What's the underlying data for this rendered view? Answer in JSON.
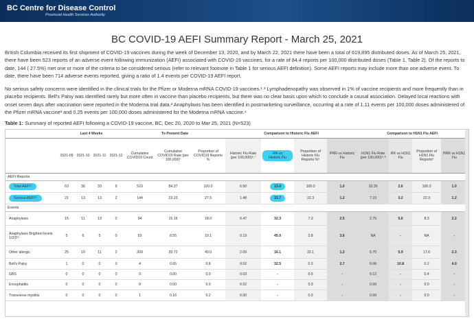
{
  "header": {
    "org": "BC Centre for Disease Control",
    "sub": "Provincial Health Services Authority"
  },
  "title": "BC COVID-19 AEFI Summary Report - March 25, 2021",
  "paragraphs": [
    "British Columbia received its first shipment of COVID-19 vaccines during the week of December 13, 2020, and by March 22, 2021 there have been a total of 619,895 distributed doses. As of March 25, 2021, there have been 523 reports of an adverse event following immunization (AEFI) associated with COVID-19 vaccines, for a rate of 84.4 reports per 100,000 distributed doses (Table 1, Table 2). Of the reports to date, 144 ( 27.5%) met one or more of the criteria to be considered serious (refer to relevant footnote in Table 1 for serious AEFI definition). Some AEFI reports may include more than one adverse event. To date, there have been 714 adverse events reported, giving a ratio of 1.4 events per COVID-19 AEFI report.",
    "No serious safety concerns were identified in the clinical trials for the Pfizer or Moderna mRNA COVID-19 vaccines.¹˒² Lymphadenopathy was observed in 1% of vaccine recipients and more frequently than in placebo recipients. Bell's Palsy was identified rarely but more often in vaccine than placebo recipients, but there was no clear basis upon which to conclude a causal association. Delayed local reactions with onset seven days after vaccination were reported in the Moderna trial data.² Anaphylaxis has been identified in postmarketing surveillance, occurring at a rate of 1.11 events per 100,000 doses administered of the Pfizer mRNA vaccine³ and 0.25 events per 100,000 doses administered for the Moderna mRNA vaccine.⁴"
  ],
  "table": {
    "caption_label": "Table 1:",
    "caption": "Summary of reported AEFI following a COVID-19 vaccine, BC, Dec 20, 2020 to Mar 25, 2021 (N=523)",
    "groups": [
      {
        "label": "Last 4 Weeks",
        "span": 4
      },
      {
        "label": "To Present Date",
        "span": 3
      },
      {
        "label": "Comparison to Historic Flu AEFI",
        "span": 4
      },
      {
        "label": "Comparison to H1N1 Flu AEFI",
        "span": 4
      }
    ],
    "columns": [
      "2021-09",
      "2021-10",
      "2021-11",
      "2021-12",
      "Cumulative COVID19 Count",
      "Cumulative COVID19 Rate (per 100,000)⁵",
      "Proportion of COVID19 Reports %",
      "Historic Flu Rate (per 100,000)⁶˒⁷",
      "RR vs Historic Flu",
      "Proportion of Historic Flu Reports %⁶",
      "PRR vs Historic Flu",
      "H1N1 Flu Rate (per 100,000)⁶˒⁸",
      "RR vs H1N1 Flu",
      "Proportion of H1N1 Flu Reports⁶",
      "PRR vs H1N1 Flu"
    ],
    "rows": [
      {
        "section": "AEFI Reports"
      },
      {
        "label": "Total AEFI⁹",
        "cells": [
          "63",
          "36",
          "33",
          "6",
          "523",
          "84.37",
          "100.0",
          "6.50",
          "13.0",
          "100.0",
          "1.0",
          "32.36",
          "2.6",
          "100.0",
          "1.0"
        ]
      },
      {
        "label": "Serious AEFI¹⁰",
        "cells": [
          "21",
          "13",
          "13",
          "2",
          "144",
          "23.23",
          "27.5",
          "1.48",
          "15.7",
          "22.3",
          "1.2",
          "7.23",
          "3.2",
          "22.3",
          "1.2"
        ]
      },
      {
        "section": "Events"
      },
      {
        "label": "Anaphylaxis",
        "cells": [
          "15",
          "11",
          "13",
          "0",
          "94",
          "15.16",
          "18.0",
          "0.47",
          "32.3",
          "7.3",
          "2.5",
          "2.70",
          "5.6",
          "8.3",
          "2.2"
        ]
      },
      {
        "label": "Anaphylaxis Brighton levels 1/2/3¹¹",
        "cells": [
          "5",
          "6",
          "5",
          "0",
          "53",
          "8.55",
          "10.1",
          "0.19",
          "45.0",
          "2.8",
          "3.6",
          "NA",
          "-",
          "NA",
          "-"
        ]
      },
      {
        "label": "Other allergic",
        "cells": [
          "25",
          "10",
          "11",
          "2",
          "209",
          "33.72",
          "40.0",
          "2.09",
          "16.1",
          "32.1",
          "1.2",
          "5.70",
          "5.9",
          "17.6",
          "2.3"
        ]
      },
      {
        "label": "Bell's Palsy",
        "cells": [
          "1",
          "0",
          "0",
          "0",
          "4",
          "0.65",
          "0.8",
          "0.02",
          "32.5",
          "0.3",
          "2.7",
          "0.06",
          "10.8",
          "0.2",
          "4.0"
        ]
      },
      {
        "label": "GBS",
        "cells": [
          "0",
          "0",
          "0",
          "0",
          "0",
          "0.00",
          "0.0",
          "0.03",
          "-",
          "0.5",
          "-",
          "0.12",
          "-",
          "0.4",
          "-"
        ]
      },
      {
        "label": "Encephalitis",
        "cells": [
          "0",
          "0",
          "0",
          "0",
          "0",
          "0.00",
          "0.0",
          "0.02",
          "-",
          "0.3",
          "-",
          "0.00",
          "-",
          "0.0",
          "-"
        ]
      },
      {
        "label": "Transverse myelitis",
        "cells": [
          "0",
          "0",
          "0",
          "0",
          "1",
          "0.16",
          "0.2",
          "0.00",
          "-",
          "0.0",
          "-",
          "0.00",
          "-",
          "0.0",
          "-"
        ]
      }
    ]
  }
}
